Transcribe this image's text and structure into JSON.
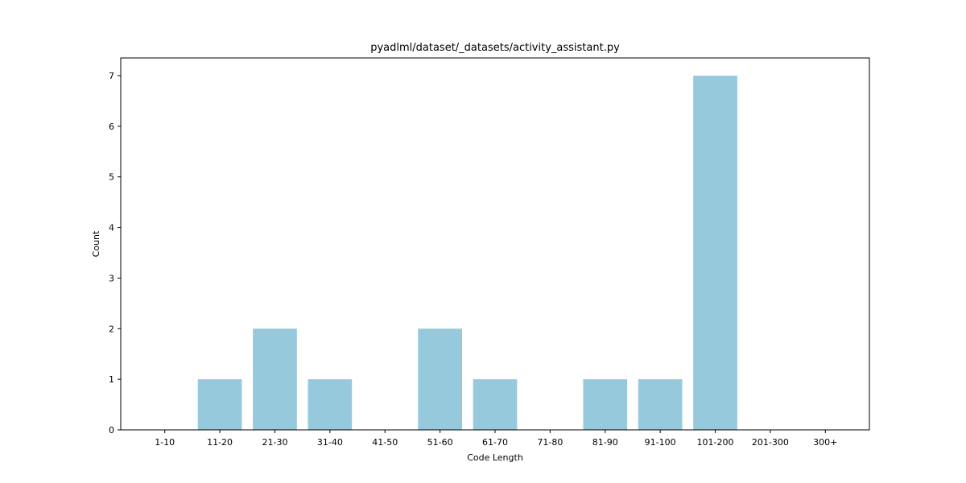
{
  "chart_data": {
    "type": "bar",
    "title": "pyadlml/dataset/_datasets/activity_assistant.py",
    "xlabel": "Code Length",
    "ylabel": "Count",
    "categories": [
      "1-10",
      "11-20",
      "21-30",
      "31-40",
      "41-50",
      "51-60",
      "61-70",
      "71-80",
      "81-90",
      "91-100",
      "101-200",
      "201-300",
      "300+"
    ],
    "values": [
      0,
      1,
      2,
      1,
      0,
      2,
      1,
      0,
      1,
      1,
      7,
      0,
      0
    ],
    "ylim": [
      0,
      7.35
    ],
    "yticks": [
      0,
      1,
      2,
      3,
      4,
      5,
      6,
      7
    ],
    "bar_color": "#96c9dc",
    "grid": false,
    "legend": "none"
  }
}
